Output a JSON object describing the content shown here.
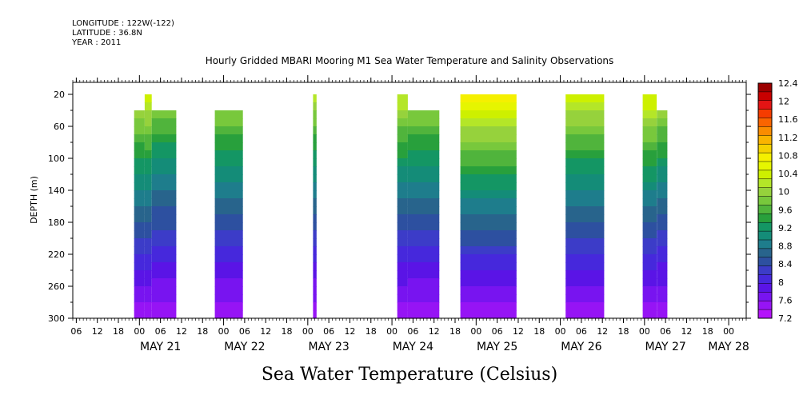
{
  "header": {
    "longitude": "LONGITUDE : 122W(-122)",
    "latitude": "LATITUDE : 36.8N",
    "year": "YEAR : 2011"
  },
  "chart_data": {
    "type": "heatmap",
    "title": "Hourly Gridded MBARI Mooring M1 Sea Water Temperature and Salinity Observations",
    "xlabel": "Sea Water Temperature (Celsius)",
    "ylabel": "DEPTH (m)",
    "x_units": "hours since May 20 2011 00:00",
    "xlim": [
      5,
      197
    ],
    "ylim": [
      300,
      5
    ],
    "y_ticks": [
      20,
      60,
      100,
      140,
      180,
      220,
      260,
      300
    ],
    "hour_ticks": [
      {
        "h": 6,
        "label": "06"
      },
      {
        "h": 12,
        "label": "12"
      },
      {
        "h": 18,
        "label": "18"
      },
      {
        "h": 24,
        "label": "00"
      },
      {
        "h": 30,
        "label": "06"
      },
      {
        "h": 36,
        "label": "12"
      },
      {
        "h": 42,
        "label": "18"
      },
      {
        "h": 48,
        "label": "00"
      },
      {
        "h": 54,
        "label": "06"
      },
      {
        "h": 60,
        "label": "12"
      },
      {
        "h": 66,
        "label": "18"
      },
      {
        "h": 72,
        "label": "00"
      },
      {
        "h": 78,
        "label": "06"
      },
      {
        "h": 84,
        "label": "12"
      },
      {
        "h": 90,
        "label": "18"
      },
      {
        "h": 96,
        "label": "00"
      },
      {
        "h": 102,
        "label": "06"
      },
      {
        "h": 108,
        "label": "12"
      },
      {
        "h": 114,
        "label": "18"
      },
      {
        "h": 120,
        "label": "00"
      },
      {
        "h": 126,
        "label": "06"
      },
      {
        "h": 132,
        "label": "12"
      },
      {
        "h": 138,
        "label": "18"
      },
      {
        "h": 144,
        "label": "00"
      },
      {
        "h": 150,
        "label": "06"
      },
      {
        "h": 156,
        "label": "12"
      },
      {
        "h": 162,
        "label": "18"
      },
      {
        "h": 168,
        "label": "00"
      },
      {
        "h": 174,
        "label": "06"
      },
      {
        "h": 180,
        "label": "12"
      },
      {
        "h": 186,
        "label": "18"
      },
      {
        "h": 192,
        "label": "00"
      }
    ],
    "date_labels": [
      {
        "h": 30,
        "label": "MAY 21"
      },
      {
        "h": 54,
        "label": "MAY 22"
      },
      {
        "h": 78,
        "label": "MAY 23"
      },
      {
        "h": 102,
        "label": "MAY 24"
      },
      {
        "h": 126,
        "label": "MAY 25"
      },
      {
        "h": 150,
        "label": "MAY 26"
      },
      {
        "h": 174,
        "label": "MAY 27"
      },
      {
        "h": 192,
        "label": "MAY 28"
      }
    ],
    "colorbar": {
      "labels": [
        "12.4",
        "12",
        "11.6",
        "11.2",
        "10.8",
        "10.4",
        "10",
        "9.6",
        "9.2",
        "8.8",
        "8.4",
        "8",
        "7.6",
        "7.2"
      ],
      "colors": [
        "#9b0000",
        "#c80000",
        "#e41414",
        "#f53c00",
        "#fa6400",
        "#fa8c00",
        "#fab400",
        "#f5d200",
        "#f5f000",
        "#e6f500",
        "#cdf000",
        "#b4e628",
        "#96d23c",
        "#78c83c",
        "#50b43c",
        "#28a03c",
        "#149664",
        "#148c78",
        "#1e7d8c",
        "#28648c",
        "#2d50a0",
        "#3c3cc8",
        "#4628dc",
        "#5a14e6",
        "#7814f0",
        "#9614f5",
        "#b414fa"
      ],
      "min": 7.2,
      "max": 12.4
    },
    "segments": [
      {
        "start": 22.5,
        "end": 25.5,
        "top_depth": 40,
        "warm": 0.55
      },
      {
        "start": 25.5,
        "end": 27.5,
        "top_depth": 20,
        "warm": 0.7
      },
      {
        "start": 27.5,
        "end": 34.5,
        "top_depth": 40,
        "warm": 0.5
      },
      {
        "start": 45.5,
        "end": 53.5,
        "top_depth": 40,
        "warm": 0.55
      },
      {
        "start": 73.5,
        "end": 74.5,
        "top_depth": 20,
        "warm": 0.6
      },
      {
        "start": 97.5,
        "end": 100.5,
        "top_depth": 20,
        "warm": 0.65
      },
      {
        "start": 100.5,
        "end": 109.5,
        "top_depth": 40,
        "warm": 0.6
      },
      {
        "start": 115.5,
        "end": 131.5,
        "top_depth": 20,
        "warm": 0.95
      },
      {
        "start": 145.5,
        "end": 156.5,
        "top_depth": 20,
        "warm": 0.75
      },
      {
        "start": 167.5,
        "end": 171.5,
        "top_depth": 20,
        "warm": 0.85
      },
      {
        "start": 171.5,
        "end": 174.5,
        "top_depth": 40,
        "warm": 0.55
      }
    ],
    "grid": false,
    "legend": "right colorbar"
  }
}
